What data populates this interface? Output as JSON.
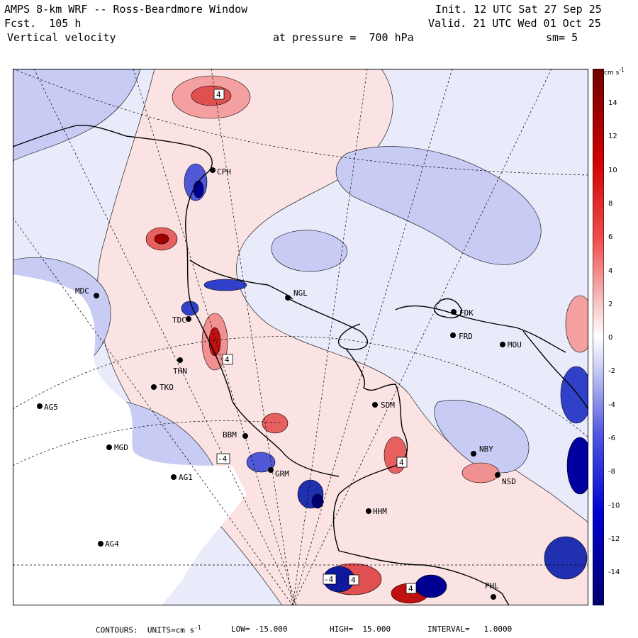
{
  "header": {
    "title": "AMPS 8-km WRF -- Ross-Beardmore Window",
    "forecast": "Fcst.  105 h",
    "field": "Vertical velocity",
    "init": "Init. 12 UTC Sat 27 Sep 25",
    "valid": "Valid. 21 UTC Wed 01 Oct 25",
    "pressure": "at pressure =  700 hPa",
    "smoothing": "sm= 5"
  },
  "footer": {
    "contours": "CONTOURS:  UNITS=cm s",
    "units_sup": "-1",
    "low": "LOW= -15.000",
    "high": "HIGH=  15.000",
    "interval": "INTERVAL=   1.0000"
  },
  "colorbar": {
    "unit_label": "cm s",
    "unit_sup": "-1",
    "ticks": [
      "14",
      "12",
      "10",
      "8",
      "6",
      "4",
      "2",
      "0",
      "-2",
      "-4",
      "-6",
      "-8",
      "-10",
      "-12",
      "-14"
    ],
    "colors": {
      "deep_red": "#7a0000",
      "red": "#e00000",
      "light_red": "#f8c8c8",
      "white": "#ffffff",
      "light_blue": "#c8ccf4",
      "blue": "#0000e0",
      "deep_blue": "#00006e"
    }
  },
  "map": {
    "stations": [
      {
        "id": "CPH"
      },
      {
        "id": "MDC"
      },
      {
        "id": "NGL"
      },
      {
        "id": "FDK"
      },
      {
        "id": "FRD"
      },
      {
        "id": "MOU"
      },
      {
        "id": "TDC"
      },
      {
        "id": "THN"
      },
      {
        "id": "TKO"
      },
      {
        "id": "AG5"
      },
      {
        "id": "SDM"
      },
      {
        "id": "BBM"
      },
      {
        "id": "MGD"
      },
      {
        "id": "NBY"
      },
      {
        "id": "AG1"
      },
      {
        "id": "GRM"
      },
      {
        "id": "NSD"
      },
      {
        "id": "HHM"
      },
      {
        "id": "AG4"
      },
      {
        "id": "PHL"
      }
    ],
    "contour_labels": [
      "4",
      "4",
      "-4",
      "4",
      "4",
      "-4",
      "4"
    ]
  }
}
